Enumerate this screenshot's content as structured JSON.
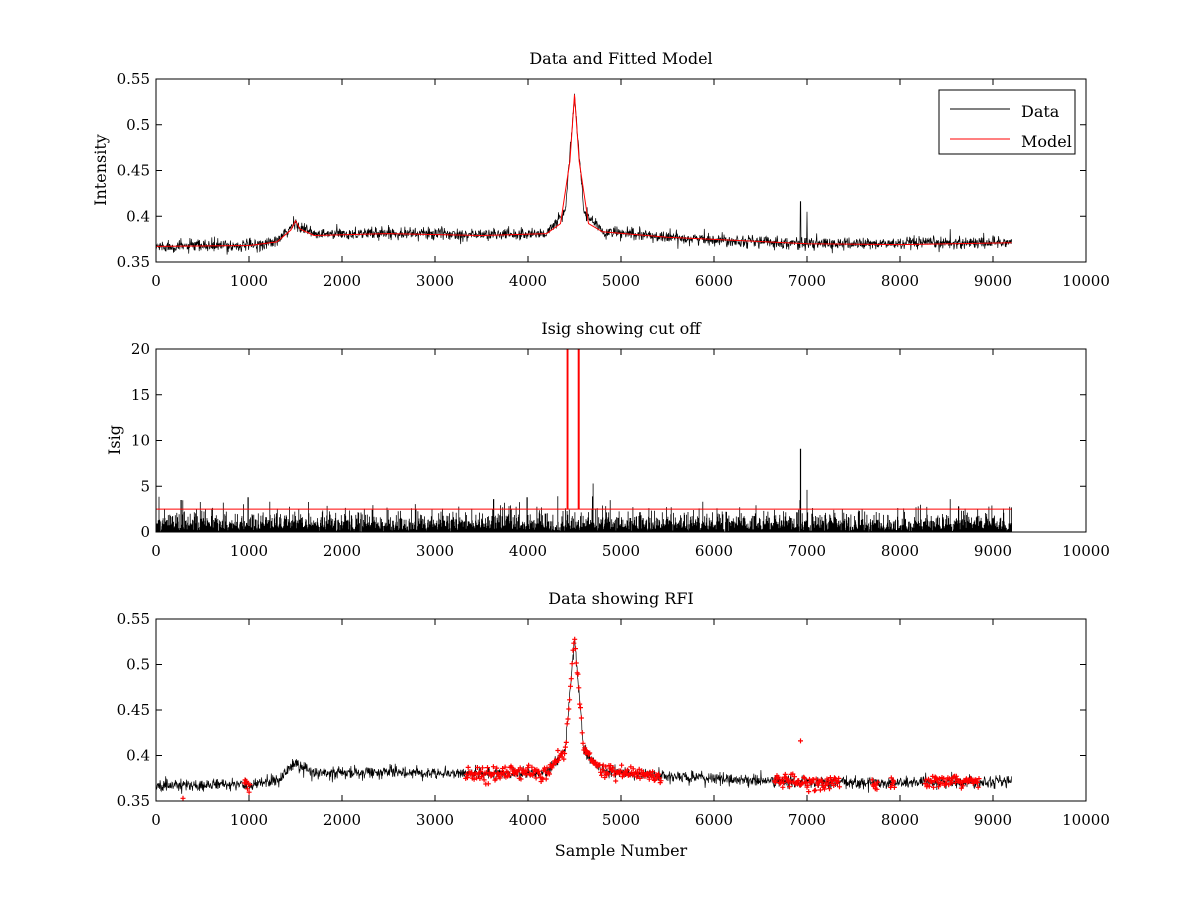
{
  "chart_data": [
    {
      "type": "line",
      "title": "Data and Fitted Model",
      "xlabel": "",
      "ylabel": "Intensity",
      "xlim": [
        0,
        10000
      ],
      "ylim": [
        0.35,
        0.55
      ],
      "xticks": [
        "0",
        "1000",
        "2000",
        "3000",
        "4000",
        "5000",
        "6000",
        "7000",
        "8000",
        "9000",
        "10000"
      ],
      "yticks": [
        "0.35",
        "0.4",
        "0.45",
        "0.5",
        "0.55"
      ],
      "grid": false,
      "legend": {
        "placement": "top-right",
        "entries": [
          "Data",
          "Model"
        ]
      },
      "series": [
        {
          "name": "Data",
          "color": "#000000",
          "style": "noisy-line",
          "x_range": [
            0,
            9200
          ],
          "noise_amplitude": 0.006,
          "baseline_points": [
            [
              0,
              0.367
            ],
            [
              1000,
              0.368
            ],
            [
              1300,
              0.372
            ],
            [
              1500,
              0.392
            ],
            [
              1700,
              0.38
            ],
            [
              2500,
              0.382
            ],
            [
              3500,
              0.38
            ],
            [
              4200,
              0.381
            ],
            [
              4400,
              0.405
            ],
            [
              4500,
              0.53
            ],
            [
              4600,
              0.405
            ],
            [
              4800,
              0.383
            ],
            [
              5500,
              0.377
            ],
            [
              7000,
              0.37
            ],
            [
              8000,
              0.37
            ],
            [
              9200,
              0.372
            ]
          ],
          "spikes": [
            [
              6930,
              0.416
            ],
            [
              7000,
              0.405
            ],
            [
              8540,
              0.386
            ],
            [
              4700,
              0.393
            ],
            [
              4630,
              0.395
            ],
            [
              1480,
              0.4
            ]
          ]
        },
        {
          "name": "Model",
          "color": "#ff0000",
          "style": "line",
          "points": [
            [
              0,
              0.367
            ],
            [
              1000,
              0.368
            ],
            [
              1300,
              0.372
            ],
            [
              1450,
              0.385
            ],
            [
              1500,
              0.395
            ],
            [
              1550,
              0.386
            ],
            [
              1700,
              0.379
            ],
            [
              2500,
              0.381
            ],
            [
              3500,
              0.379
            ],
            [
              4200,
              0.381
            ],
            [
              4350,
              0.392
            ],
            [
              4450,
              0.46
            ],
            [
              4500,
              0.533
            ],
            [
              4550,
              0.46
            ],
            [
              4650,
              0.392
            ],
            [
              4800,
              0.383
            ],
            [
              5500,
              0.377
            ],
            [
              7000,
              0.37
            ],
            [
              8000,
              0.369
            ],
            [
              9200,
              0.371
            ]
          ]
        }
      ]
    },
    {
      "type": "line",
      "title": "Isig showing cut off",
      "xlabel": "",
      "ylabel": "Isig",
      "xlim": [
        0,
        10000
      ],
      "ylim": [
        0,
        20
      ],
      "xticks": [
        "0",
        "1000",
        "2000",
        "3000",
        "4000",
        "5000",
        "6000",
        "7000",
        "8000",
        "9000",
        "10000"
      ],
      "yticks": [
        "0",
        "5",
        "10",
        "15",
        "20"
      ],
      "grid": false,
      "series": [
        {
          "color": "#000000",
          "style": "noisy-bars",
          "x_range": [
            0,
            9200
          ],
          "noise_amplitude": 2.0,
          "spikes": [
            [
              270,
              3.5
            ],
            [
              990,
              3.8
            ],
            [
              3630,
              3.6
            ],
            [
              3990,
              3.8
            ],
            [
              4320,
              3.9
            ],
            [
              4700,
              5.3
            ],
            [
              6930,
              9.1
            ],
            [
              7000,
              4.6
            ],
            [
              8540,
              3.6
            ]
          ]
        },
        {
          "color": "#ff0000",
          "style": "line",
          "points": [
            [
              0,
              2.5
            ],
            [
              4420,
              2.5
            ],
            [
              4420,
              20
            ],
            [
              4430,
              20
            ],
            [
              4430,
              2.5
            ],
            [
              4540,
              2.5
            ],
            [
              4540,
              20
            ],
            [
              4550,
              20
            ],
            [
              4550,
              2.5
            ],
            [
              9200,
              2.5
            ]
          ]
        }
      ]
    },
    {
      "type": "scatter",
      "title": "Data showing RFI",
      "xlabel": "Sample Number",
      "ylabel": "",
      "xlim": [
        0,
        10000
      ],
      "ylim": [
        0.35,
        0.55
      ],
      "xticks": [
        "0",
        "1000",
        "2000",
        "3000",
        "4000",
        "5000",
        "6000",
        "7000",
        "8000",
        "9000",
        "10000"
      ],
      "yticks": [
        "0.35",
        "0.4",
        "0.45",
        "0.5",
        "0.55"
      ],
      "grid": false,
      "series": [
        {
          "color": "#000000",
          "style": "noisy-line",
          "x_range": [
            0,
            9200
          ],
          "noise_amplitude": 0.006,
          "baseline_points": [
            [
              0,
              0.367
            ],
            [
              1000,
              0.368
            ],
            [
              1300,
              0.372
            ],
            [
              1500,
              0.392
            ],
            [
              1700,
              0.38
            ],
            [
              2500,
              0.382
            ],
            [
              3500,
              0.38
            ],
            [
              4200,
              0.381
            ],
            [
              4400,
              0.405
            ],
            [
              4500,
              0.53
            ],
            [
              4600,
              0.405
            ],
            [
              4800,
              0.383
            ],
            [
              5500,
              0.377
            ],
            [
              7000,
              0.37
            ],
            [
              8000,
              0.37
            ],
            [
              9200,
              0.372
            ]
          ]
        },
        {
          "color": "#ff0000",
          "style": "markers",
          "flagged_ranges": [
            [
              3330,
              5430
            ],
            [
              6650,
              7350
            ],
            [
              8270,
              8850
            ],
            [
              950,
              1010
            ],
            [
              7700,
              7760
            ],
            [
              7900,
              7940
            ]
          ],
          "isolated_points": [
            [
              290,
              0.353
            ],
            [
              6930,
              0.416
            ]
          ]
        }
      ]
    }
  ]
}
